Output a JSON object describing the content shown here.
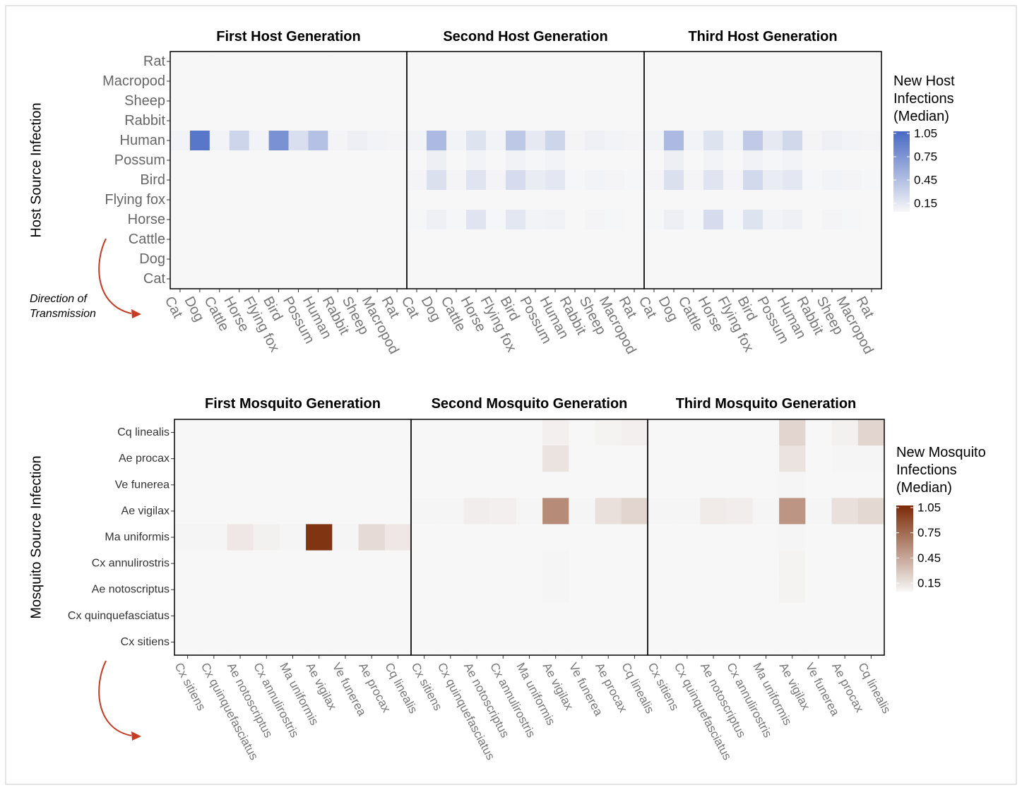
{
  "chart_data": [
    {
      "type": "heatmap",
      "row_axis_label": "Host Source Infection",
      "rows": [
        "Rat",
        "Macropod",
        "Sheep",
        "Rabbit",
        "Human",
        "Possum",
        "Bird",
        "Flying fox",
        "Horse",
        "Cattle",
        "Dog",
        "Cat"
      ],
      "columns": [
        "Cat",
        "Dog",
        "Cattle",
        "Horse",
        "Flying fox",
        "Bird",
        "Possum",
        "Human",
        "Rabbit",
        "Sheep",
        "Macropod",
        "Rat"
      ],
      "panels": [
        {
          "title": "First Host Generation",
          "values": [
            [
              0,
              0,
              0,
              0,
              0,
              0,
              0,
              0,
              0,
              0,
              0,
              0
            ],
            [
              0,
              0,
              0,
              0,
              0,
              0,
              0,
              0,
              0,
              0,
              0,
              0
            ],
            [
              0,
              0,
              0,
              0,
              0,
              0,
              0,
              0,
              0,
              0,
              0,
              0
            ],
            [
              0,
              0,
              0,
              0,
              0,
              0,
              0,
              0,
              0,
              0,
              0,
              0
            ],
            [
              0.03,
              0.95,
              0.03,
              0.25,
              0.03,
              0.75,
              0.18,
              0.4,
              0.02,
              0.06,
              0.03,
              0.02
            ],
            [
              0,
              0,
              0,
              0,
              0,
              0,
              0,
              0,
              0,
              0,
              0,
              0
            ],
            [
              0,
              0,
              0,
              0,
              0,
              0,
              0,
              0,
              0,
              0,
              0,
              0
            ],
            [
              0,
              0,
              0,
              0,
              0,
              0,
              0,
              0,
              0,
              0,
              0,
              0
            ],
            [
              0,
              0,
              0,
              0,
              0,
              0,
              0,
              0,
              0,
              0,
              0,
              0
            ],
            [
              0,
              0,
              0,
              0,
              0,
              0,
              0,
              0,
              0,
              0,
              0,
              0
            ],
            [
              0,
              0,
              0,
              0,
              0,
              0,
              0,
              0,
              0,
              0,
              0,
              0
            ],
            [
              0,
              0,
              0,
              0,
              0,
              0,
              0,
              0,
              0,
              0,
              0,
              0
            ]
          ]
        },
        {
          "title": "Second Host Generation",
          "values": [
            [
              0,
              0,
              0,
              0,
              0,
              0,
              0,
              0,
              0,
              0,
              0,
              0
            ],
            [
              0,
              0,
              0,
              0,
              0,
              0,
              0,
              0,
              0,
              0,
              0,
              0
            ],
            [
              0,
              0,
              0,
              0,
              0,
              0,
              0,
              0,
              0,
              0,
              0,
              0
            ],
            [
              0,
              0,
              0,
              0,
              0,
              0,
              0,
              0,
              0,
              0,
              0,
              0
            ],
            [
              0.03,
              0.45,
              0.03,
              0.15,
              0.03,
              0.35,
              0.1,
              0.25,
              0.02,
              0.05,
              0.03,
              0.02
            ],
            [
              0,
              0.06,
              0,
              0.03,
              0,
              0.04,
              0.01,
              0.03,
              0,
              0,
              0,
              0
            ],
            [
              0.02,
              0.17,
              0.02,
              0.14,
              0.02,
              0.2,
              0.08,
              0.12,
              0.01,
              0.03,
              0.02,
              0.01
            ],
            [
              0,
              0,
              0,
              0,
              0,
              0,
              0,
              0,
              0,
              0,
              0,
              0
            ],
            [
              0.01,
              0.05,
              0.01,
              0.14,
              0.01,
              0.12,
              0.03,
              0.04,
              0,
              0.02,
              0.01,
              0
            ],
            [
              0,
              0,
              0,
              0,
              0,
              0,
              0,
              0,
              0,
              0,
              0,
              0
            ],
            [
              0,
              0,
              0,
              0,
              0,
              0,
              0,
              0,
              0,
              0,
              0,
              0
            ],
            [
              0,
              0,
              0,
              0,
              0,
              0,
              0,
              0,
              0,
              0,
              0,
              0
            ]
          ]
        },
        {
          "title": "Third Host Generation",
          "values": [
            [
              0,
              0,
              0,
              0,
              0,
              0,
              0,
              0,
              0,
              0,
              0,
              0
            ],
            [
              0,
              0,
              0,
              0,
              0,
              0,
              0,
              0,
              0,
              0,
              0,
              0
            ],
            [
              0,
              0,
              0,
              0,
              0,
              0,
              0,
              0,
              0,
              0,
              0,
              0
            ],
            [
              0,
              0,
              0,
              0,
              0,
              0,
              0,
              0,
              0,
              0,
              0,
              0
            ],
            [
              0.03,
              0.45,
              0.03,
              0.15,
              0.03,
              0.33,
              0.1,
              0.23,
              0.02,
              0.05,
              0.03,
              0.02
            ],
            [
              0,
              0.06,
              0,
              0.03,
              0,
              0.04,
              0.01,
              0.03,
              0,
              0,
              0,
              0
            ],
            [
              0.02,
              0.17,
              0.02,
              0.14,
              0.02,
              0.22,
              0.08,
              0.12,
              0.01,
              0.03,
              0.02,
              0.01
            ],
            [
              0,
              0,
              0,
              0,
              0,
              0,
              0,
              0,
              0,
              0,
              0,
              0
            ],
            [
              0.01,
              0.06,
              0.01,
              0.2,
              0.01,
              0.15,
              0.03,
              0.05,
              0,
              0.02,
              0.01,
              0
            ],
            [
              0,
              0,
              0,
              0,
              0,
              0,
              0,
              0,
              0,
              0,
              0,
              0
            ],
            [
              0,
              0,
              0,
              0,
              0,
              0,
              0,
              0,
              0,
              0,
              0,
              0
            ],
            [
              0,
              0,
              0,
              0,
              0,
              0,
              0,
              0,
              0,
              0,
              0,
              0
            ]
          ]
        }
      ],
      "legend": {
        "title": [
          "New Host",
          "Infections",
          "(Median)"
        ],
        "ticks": [
          1.05,
          0.75,
          0.45,
          0.15
        ],
        "range": [
          0,
          1.05
        ],
        "high_color": "#4869c4",
        "low_color": "#f7f7f7"
      },
      "annotation": [
        "Direction of",
        "Transmission"
      ],
      "arrow_color": "#c93a22"
    },
    {
      "type": "heatmap",
      "row_axis_label": "Mosquito Source Infection",
      "rows": [
        "Cq linealis",
        "Ae procax",
        "Ve funerea",
        "Ae vigilax",
        "Ma uniformis",
        "Cx annulirostris",
        "Ae notoscriptus",
        "Cx quinquefasciatus",
        "Cx sitiens"
      ],
      "columns": [
        "Cx sitiens",
        "Cx quinquefasciatus",
        "Ae notoscriptus",
        "Cx annulirostris",
        "Ma uniformis",
        "Ae vigilax",
        "Ve funerea",
        "Ae procax",
        "Cq linealis"
      ],
      "panels": [
        {
          "title": "First Mosquito Generation",
          "values": [
            [
              0,
              0,
              0,
              0,
              0,
              0,
              0,
              0,
              0
            ],
            [
              0,
              0,
              0,
              0,
              0,
              0,
              0,
              0,
              0
            ],
            [
              0,
              0,
              0,
              0,
              0,
              0,
              0,
              0,
              0
            ],
            [
              0,
              0,
              0,
              0,
              0,
              0,
              0,
              0,
              0
            ],
            [
              0.01,
              0.01,
              0.08,
              0.03,
              0.01,
              1.0,
              0.01,
              0.15,
              0.08
            ],
            [
              0,
              0,
              0,
              0,
              0,
              0,
              0,
              0,
              0
            ],
            [
              0,
              0,
              0,
              0,
              0,
              0,
              0,
              0,
              0
            ],
            [
              0,
              0,
              0,
              0,
              0,
              0,
              0,
              0,
              0
            ],
            [
              0,
              0,
              0,
              0,
              0,
              0,
              0,
              0,
              0
            ]
          ]
        },
        {
          "title": "Second Mosquito Generation",
          "values": [
            [
              0,
              0,
              0,
              0,
              0,
              0.04,
              0,
              0.02,
              0.04
            ],
            [
              0,
              0,
              0,
              0,
              0,
              0.1,
              0,
              0,
              0
            ],
            [
              0,
              0,
              0,
              0,
              0,
              0,
              0,
              0,
              0
            ],
            [
              0.01,
              0.01,
              0.05,
              0.04,
              0.01,
              0.55,
              0.01,
              0.12,
              0.18
            ],
            [
              0,
              0,
              0,
              0,
              0,
              0,
              0,
              0,
              0
            ],
            [
              0,
              0,
              0,
              0,
              0,
              0.01,
              0,
              0,
              0
            ],
            [
              0,
              0,
              0,
              0,
              0,
              0.01,
              0,
              0,
              0
            ],
            [
              0,
              0,
              0,
              0,
              0,
              0,
              0,
              0,
              0
            ],
            [
              0,
              0,
              0,
              0,
              0,
              0,
              0,
              0,
              0
            ]
          ]
        },
        {
          "title": "Third Mosquito Generation",
          "values": [
            [
              0,
              0,
              0,
              0,
              0,
              0.18,
              0,
              0.03,
              0.18
            ],
            [
              0,
              0,
              0,
              0,
              0,
              0.1,
              0,
              0.01,
              0.01
            ],
            [
              0,
              0,
              0,
              0,
              0,
              0.01,
              0,
              0,
              0
            ],
            [
              0.01,
              0.01,
              0.06,
              0.05,
              0.01,
              0.5,
              0.01,
              0.12,
              0.16
            ],
            [
              0,
              0,
              0,
              0,
              0,
              0.01,
              0,
              0,
              0
            ],
            [
              0,
              0,
              0,
              0,
              0,
              0.02,
              0,
              0,
              0
            ],
            [
              0,
              0,
              0,
              0,
              0,
              0.02,
              0,
              0,
              0
            ],
            [
              0,
              0,
              0,
              0,
              0,
              0,
              0,
              0,
              0
            ],
            [
              0,
              0,
              0,
              0,
              0,
              0,
              0,
              0,
              0
            ]
          ]
        }
      ],
      "legend": {
        "title": [
          "New Mosquito",
          "Infections",
          "(Median)"
        ],
        "ticks": [
          1.05,
          0.75,
          0.45,
          0.15
        ],
        "range": [
          0,
          1.05
        ],
        "high_color": "#7b2a06",
        "low_color": "#f7f7f7"
      },
      "arrow_color": "#c93a22"
    }
  ]
}
